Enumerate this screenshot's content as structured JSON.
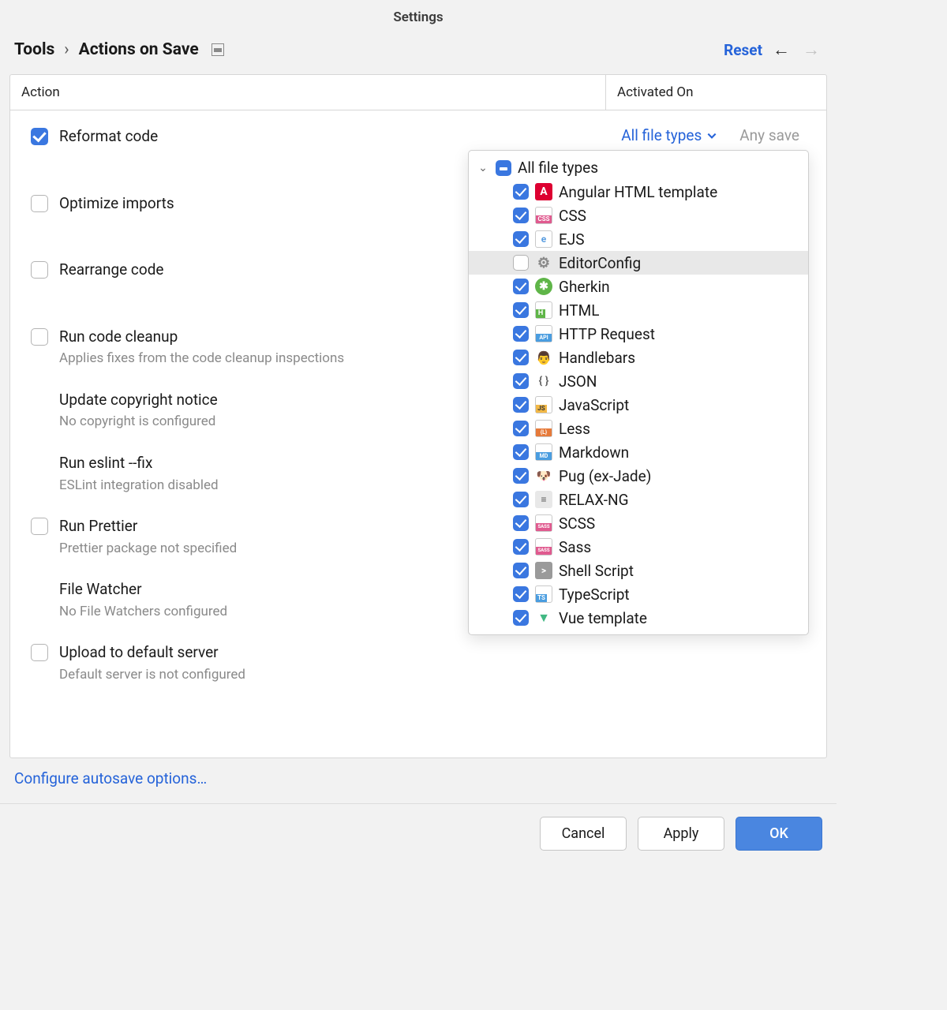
{
  "title": "Settings",
  "breadcrumb": {
    "parent": "Tools",
    "current": "Actions on Save"
  },
  "reset": "Reset",
  "headers": {
    "action": "Action",
    "activated": "Activated On"
  },
  "row0": {
    "label": "Reformat code",
    "filetype_link": "All file types",
    "activated": "Any save"
  },
  "actions": {
    "optimize": {
      "label": "Optimize imports"
    },
    "rearrange": {
      "label": "Rearrange code"
    },
    "cleanup": {
      "label": "Run code cleanup",
      "sub": "Applies fixes from the code cleanup inspections"
    },
    "copyright": {
      "label": "Update copyright notice",
      "sub": "No copyright is configured"
    },
    "eslint": {
      "label": "Run eslint --fix",
      "sub": "ESLint integration disabled"
    },
    "prettier": {
      "label": "Run Prettier",
      "sub": "Prettier package not specified"
    },
    "filewatch": {
      "label": "File Watcher",
      "sub": "No File Watchers configured"
    },
    "upload": {
      "label": "Upload to default server",
      "sub": "Default server is not configured"
    }
  },
  "dropdown": {
    "root": "All file types",
    "items": [
      {
        "label": "Angular HTML template",
        "checked": true,
        "iconClass": "icon-angular",
        "glyph": "A"
      },
      {
        "label": "CSS",
        "checked": true,
        "iconClass": "icon-css",
        "glyph": ""
      },
      {
        "label": "EJS",
        "checked": true,
        "iconClass": "icon-ejs",
        "glyph": "e"
      },
      {
        "label": "EditorConfig",
        "checked": false,
        "iconClass": "icon-editorconfig",
        "glyph": "⚙",
        "hovered": true
      },
      {
        "label": "Gherkin",
        "checked": true,
        "iconClass": "icon-gherkin",
        "glyph": "✱"
      },
      {
        "label": "HTML",
        "checked": true,
        "iconClass": "icon-html",
        "glyph": ""
      },
      {
        "label": "HTTP Request",
        "checked": true,
        "iconClass": "icon-http",
        "glyph": ""
      },
      {
        "label": "Handlebars",
        "checked": true,
        "iconClass": "icon-handlebars",
        "glyph": "👨"
      },
      {
        "label": "JSON",
        "checked": true,
        "iconClass": "icon-json",
        "glyph": "{ }"
      },
      {
        "label": "JavaScript",
        "checked": true,
        "iconClass": "icon-js",
        "glyph": ""
      },
      {
        "label": "Less",
        "checked": true,
        "iconClass": "icon-less",
        "glyph": ""
      },
      {
        "label": "Markdown",
        "checked": true,
        "iconClass": "icon-md",
        "glyph": ""
      },
      {
        "label": "Pug (ex-Jade)",
        "checked": true,
        "iconClass": "icon-pug",
        "glyph": "🐶"
      },
      {
        "label": "RELAX-NG",
        "checked": true,
        "iconClass": "icon-relax",
        "glyph": "≡"
      },
      {
        "label": "SCSS",
        "checked": true,
        "iconClass": "icon-scss",
        "glyph": ""
      },
      {
        "label": "Sass",
        "checked": true,
        "iconClass": "icon-sass",
        "glyph": ""
      },
      {
        "label": "Shell Script",
        "checked": true,
        "iconClass": "icon-shell",
        "glyph": ">"
      },
      {
        "label": "TypeScript",
        "checked": true,
        "iconClass": "icon-ts",
        "glyph": ""
      },
      {
        "label": "Vue template",
        "checked": true,
        "iconClass": "icon-vue",
        "glyph": "▼"
      }
    ]
  },
  "footer_link": "Configure autosave options…",
  "buttons": {
    "cancel": "Cancel",
    "apply": "Apply",
    "ok": "OK"
  },
  "colors": {
    "accent": "#3a77e0",
    "link": "#2563d9",
    "muted": "#8a8a8a"
  }
}
